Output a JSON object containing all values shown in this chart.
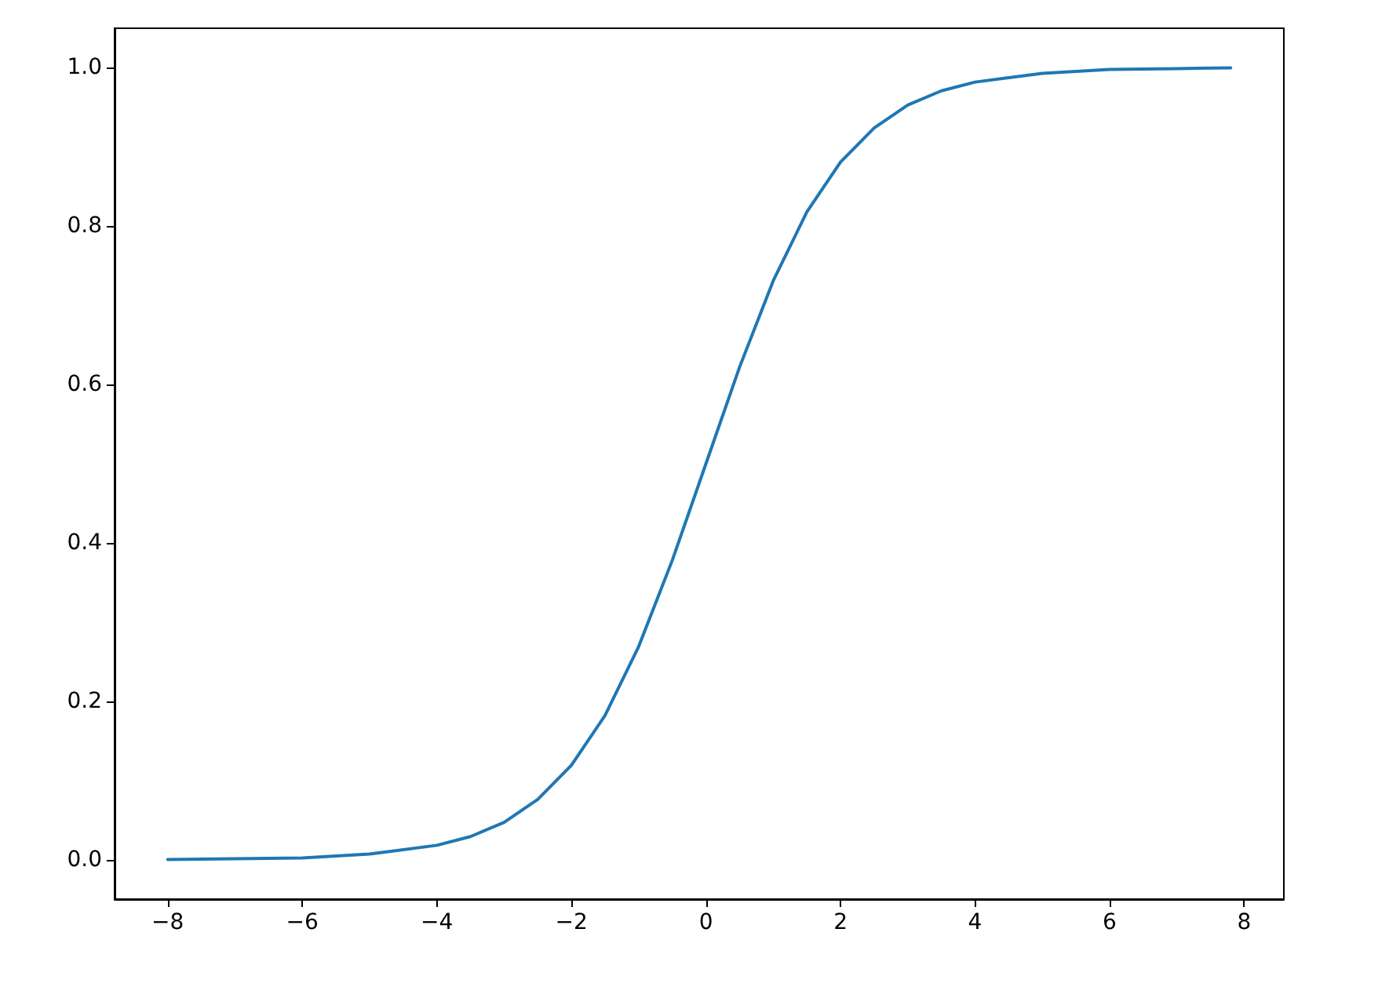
{
  "chart_data": {
    "type": "line",
    "x": [
      -8,
      -7,
      -6,
      -5,
      -4,
      -3.5,
      -3,
      -2.5,
      -2,
      -1.5,
      -1,
      -0.5,
      0,
      0.5,
      1,
      1.5,
      2,
      2.5,
      3,
      3.5,
      4,
      5,
      6,
      7,
      7.8
    ],
    "series": [
      {
        "color": "#1f77b4",
        "values": [
          0.0,
          0.001,
          0.002,
          0.007,
          0.018,
          0.029,
          0.047,
          0.076,
          0.119,
          0.182,
          0.269,
          0.378,
          0.5,
          0.622,
          0.731,
          0.818,
          0.881,
          0.924,
          0.953,
          0.971,
          0.982,
          0.993,
          0.998,
          0.999,
          1.0
        ]
      }
    ],
    "xlim": [
      -8.79,
      8.59
    ],
    "ylim": [
      -0.05,
      1.05
    ],
    "xticks": [
      {
        "value": -8,
        "label": "−8"
      },
      {
        "value": -6,
        "label": "−6"
      },
      {
        "value": -4,
        "label": "−4"
      },
      {
        "value": -2,
        "label": "−2"
      },
      0,
      2,
      4,
      6,
      8
    ],
    "yticks": [
      {
        "value": 0,
        "label": "0.0"
      },
      {
        "value": 0.2,
        "label": "0.2"
      },
      {
        "value": 0.4,
        "label": "0.4"
      },
      {
        "value": 0.6,
        "label": "0.6"
      },
      {
        "value": 0.8,
        "label": "0.8"
      },
      {
        "value": 1,
        "label": "1.0"
      }
    ],
    "grid": false,
    "marker": "none",
    "line_style": "solid"
  }
}
